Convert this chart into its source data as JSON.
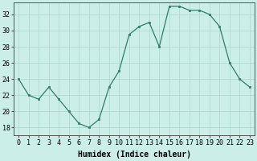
{
  "x": [
    0,
    1,
    2,
    3,
    4,
    5,
    6,
    7,
    8,
    9,
    10,
    11,
    12,
    13,
    14,
    15,
    16,
    17,
    18,
    19,
    20,
    21,
    22,
    23
  ],
  "y": [
    24,
    22,
    21.5,
    23,
    21.5,
    20,
    18.5,
    18,
    19,
    23,
    25,
    29.5,
    30.5,
    31,
    28,
    33,
    33,
    32.5,
    32.5,
    32,
    30.5,
    26,
    24,
    23
  ],
  "line_color": "#2e7d6b",
  "marker_color": "#2e7d6b",
  "bg_color": "#cceee8",
  "grid_color": "#b0d8d2",
  "xlabel": "Humidex (Indice chaleur)",
  "yticks": [
    18,
    20,
    22,
    24,
    26,
    28,
    30,
    32
  ],
  "xlim": [
    -0.5,
    23.5
  ],
  "ylim": [
    17.0,
    33.5
  ],
  "xlabel_fontsize": 7,
  "tick_fontsize": 6
}
